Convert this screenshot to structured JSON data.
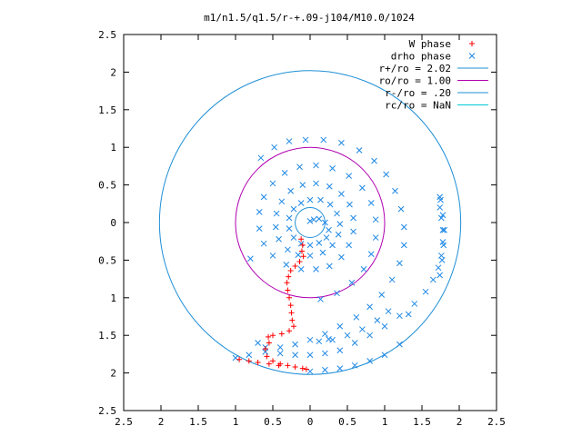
{
  "chart_data": {
    "type": "scatter",
    "title": "m1/n1.5/q1.5/r-+.09-j104/M10.0/1024",
    "xlabel": "",
    "ylabel": "",
    "xlim": [
      -2.5,
      2.5
    ],
    "ylim": [
      -2.5,
      2.5
    ],
    "x_tick_values": [
      -2.5,
      -2,
      -1.5,
      -1,
      -0.5,
      0,
      0.5,
      1,
      1.5,
      2,
      2.5
    ],
    "x_tick_labels": [
      "2.5",
      "2",
      "1.5",
      "1",
      "0.5",
      "0",
      "0.5",
      "1",
      "1.5",
      "2",
      "2.5"
    ],
    "y_tick_values": [
      2.5,
      2,
      1.5,
      1,
      0.5,
      0,
      -0.5,
      -1,
      -1.5,
      -2,
      -2.5
    ],
    "y_tick_labels": [
      "2.5",
      "2",
      "1.5",
      "1",
      "0.5",
      "0",
      "0.5",
      "1",
      "1.5",
      "2",
      "2.5"
    ],
    "grid": false,
    "legend_position": "top-right",
    "series": [
      {
        "name": "W phase",
        "marker": "plus",
        "color": "#ff0000",
        "points": [
          [
            -0.12,
            -0.22
          ],
          [
            -0.1,
            -0.3
          ],
          [
            -0.11,
            -0.38
          ],
          [
            -0.09,
            -0.45
          ],
          [
            -0.14,
            -0.52
          ],
          [
            -0.2,
            -0.58
          ],
          [
            -0.26,
            -0.64
          ],
          [
            -0.29,
            -0.72
          ],
          [
            -0.31,
            -0.8
          ],
          [
            -0.3,
            -0.9
          ],
          [
            -0.28,
            -1.0
          ],
          [
            -0.26,
            -1.1
          ],
          [
            -0.25,
            -1.2
          ],
          [
            -0.24,
            -1.3
          ],
          [
            -0.22,
            -1.38
          ],
          [
            -0.28,
            -1.44
          ],
          [
            -0.38,
            -1.48
          ],
          [
            -0.5,
            -1.5
          ],
          [
            -0.56,
            -1.52
          ],
          [
            -0.55,
            -1.6
          ],
          [
            -0.6,
            -1.68
          ],
          [
            -0.58,
            -1.78
          ],
          [
            -0.5,
            -1.84
          ],
          [
            -0.4,
            -1.88
          ],
          [
            -0.3,
            -1.9
          ],
          [
            -0.2,
            -1.92
          ],
          [
            -0.1,
            -1.94
          ],
          [
            -0.05,
            -1.95
          ],
          [
            -0.42,
            -1.9
          ],
          [
            -0.55,
            -1.88
          ],
          [
            -0.7,
            -1.86
          ],
          [
            -0.82,
            -1.84
          ],
          [
            -0.95,
            -1.82
          ]
        ]
      },
      {
        "name": "drho phase",
        "marker": "cross",
        "color": "#1e88e5",
        "points": [
          [
            0.0,
            0.02
          ],
          [
            0.05,
            0.04
          ],
          [
            0.12,
            0.05
          ],
          [
            0.2,
            0.0
          ],
          [
            0.25,
            -0.1
          ],
          [
            0.22,
            -0.2
          ],
          [
            0.12,
            -0.27
          ],
          [
            0.0,
            -0.3
          ],
          [
            -0.12,
            -0.28
          ],
          [
            -0.22,
            -0.2
          ],
          [
            -0.28,
            -0.08
          ],
          [
            -0.28,
            0.06
          ],
          [
            -0.22,
            0.18
          ],
          [
            -0.12,
            0.26
          ],
          [
            0.0,
            0.3
          ],
          [
            0.14,
            0.3
          ],
          [
            0.27,
            0.24
          ],
          [
            0.36,
            0.12
          ],
          [
            0.4,
            -0.02
          ],
          [
            0.38,
            -0.16
          ],
          [
            0.3,
            -0.3
          ],
          [
            0.17,
            -0.4
          ],
          [
            0.0,
            -0.44
          ],
          [
            -0.16,
            -0.43
          ],
          [
            -0.3,
            -0.36
          ],
          [
            -0.42,
            -0.22
          ],
          [
            -0.46,
            -0.06
          ],
          [
            -0.45,
            0.12
          ],
          [
            -0.38,
            0.28
          ],
          [
            -0.26,
            0.42
          ],
          [
            -0.1,
            0.5
          ],
          [
            0.08,
            0.52
          ],
          [
            0.26,
            0.48
          ],
          [
            0.42,
            0.38
          ],
          [
            0.53,
            0.24
          ],
          [
            0.58,
            0.06
          ],
          [
            0.58,
            -0.12
          ],
          [
            0.52,
            -0.3
          ],
          [
            0.42,
            -0.46
          ],
          [
            0.26,
            -0.58
          ],
          [
            0.08,
            -0.62
          ],
          [
            -0.12,
            -0.62
          ],
          [
            -0.32,
            -0.56
          ],
          [
            -0.5,
            -0.44
          ],
          [
            -0.62,
            -0.28
          ],
          [
            -0.68,
            -0.08
          ],
          [
            -0.68,
            0.14
          ],
          [
            -0.62,
            0.34
          ],
          [
            -0.5,
            0.52
          ],
          [
            -0.34,
            0.66
          ],
          [
            -0.14,
            0.74
          ],
          [
            0.08,
            0.76
          ],
          [
            0.3,
            0.72
          ],
          [
            0.52,
            0.62
          ],
          [
            0.7,
            0.46
          ],
          [
            0.82,
            0.26
          ],
          [
            0.88,
            0.04
          ],
          [
            0.88,
            -0.2
          ],
          [
            0.82,
            -0.42
          ],
          [
            0.72,
            -0.62
          ],
          [
            0.56,
            -0.8
          ],
          [
            0.36,
            -0.94
          ],
          [
            0.14,
            -1.02
          ],
          [
            -0.66,
            0.86
          ],
          [
            -0.48,
            1.0
          ],
          [
            -0.28,
            1.08
          ],
          [
            -0.06,
            1.1
          ],
          [
            0.18,
            1.1
          ],
          [
            0.42,
            1.06
          ],
          [
            0.66,
            0.96
          ],
          [
            0.86,
            0.82
          ],
          [
            1.02,
            0.64
          ],
          [
            1.14,
            0.42
          ],
          [
            1.22,
            0.18
          ],
          [
            1.26,
            -0.06
          ],
          [
            1.26,
            -0.3
          ],
          [
            1.2,
            -0.54
          ],
          [
            1.1,
            -0.76
          ],
          [
            0.96,
            -0.96
          ],
          [
            0.8,
            -1.12
          ],
          [
            0.62,
            -1.26
          ],
          [
            0.4,
            -1.38
          ],
          [
            0.2,
            -1.48
          ],
          [
            0.0,
            -1.56
          ],
          [
            -0.2,
            -1.62
          ],
          [
            -0.4,
            -1.66
          ],
          [
            -0.6,
            -1.66
          ],
          [
            -0.82,
            -1.76
          ],
          [
            -1.0,
            -1.8
          ],
          [
            -0.6,
            -1.72
          ],
          [
            -0.4,
            -1.74
          ],
          [
            -0.2,
            -1.76
          ],
          [
            0.0,
            -1.76
          ],
          [
            0.2,
            -1.74
          ],
          [
            0.4,
            -1.7
          ],
          [
            0.6,
            -1.6
          ],
          [
            0.8,
            -1.5
          ],
          [
            1.0,
            -1.38
          ],
          [
            1.2,
            -1.24
          ],
          [
            1.4,
            -1.08
          ],
          [
            1.55,
            -0.92
          ],
          [
            1.65,
            -0.76
          ],
          [
            1.72,
            -0.6
          ],
          [
            1.76,
            -0.44
          ],
          [
            1.78,
            -0.26
          ],
          [
            1.78,
            -0.1
          ],
          [
            1.76,
            0.06
          ],
          [
            1.74,
            0.2
          ],
          [
            1.74,
            0.34
          ],
          [
            1.75,
            0.3
          ],
          [
            1.78,
            0.1
          ],
          [
            1.8,
            -0.1
          ],
          [
            1.79,
            -0.3
          ],
          [
            1.77,
            -0.5
          ],
          [
            1.74,
            -0.7
          ],
          [
            0.12,
            -1.58
          ],
          [
            0.3,
            -1.56
          ],
          [
            0.5,
            -1.5
          ],
          [
            0.7,
            -1.42
          ],
          [
            0.9,
            -1.3
          ],
          [
            1.05,
            -1.18
          ],
          [
            0.0,
            -1.98
          ],
          [
            0.2,
            -1.96
          ],
          [
            0.4,
            -1.94
          ],
          [
            0.6,
            -1.9
          ],
          [
            0.8,
            -1.84
          ],
          [
            1.0,
            -1.76
          ],
          [
            1.2,
            -1.62
          ],
          [
            1.32,
            -1.22
          ],
          [
            -0.8,
            -0.48
          ],
          [
            0.25,
            -1.55
          ],
          [
            -0.7,
            -1.6
          ]
        ]
      }
    ],
    "circles": [
      {
        "name": "r+/ro = 2.02",
        "radius": 2.02,
        "color": "#1f8fd6"
      },
      {
        "name": "ro/ro = 1.00",
        "radius": 1.0,
        "color": "#b000b0"
      },
      {
        "name": "r-/ro = .20",
        "radius": 0.2,
        "color": "#1f8fd6"
      },
      {
        "name": "rc/ro = NaN",
        "radius": null,
        "color": "#00c8d8"
      }
    ]
  },
  "legend": {
    "entries": [
      {
        "label": "W phase",
        "type": "plus",
        "color": "#ff0000"
      },
      {
        "label": "drho phase",
        "type": "cross",
        "color": "#1e88e5"
      },
      {
        "label": "r+/ro = 2.02",
        "type": "line",
        "color": "#1f8fd6"
      },
      {
        "label": "ro/ro = 1.00",
        "type": "line",
        "color": "#b000b0"
      },
      {
        "label": "r-/ro = .20",
        "type": "line",
        "color": "#1f8fd6"
      },
      {
        "label": "rc/ro = NaN",
        "type": "line",
        "color": "#00c8d8"
      }
    ]
  }
}
